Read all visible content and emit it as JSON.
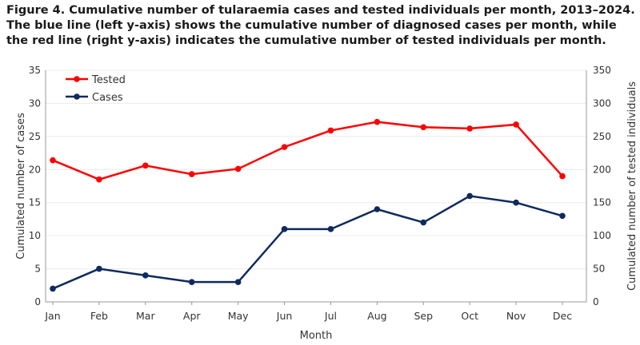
{
  "caption": "Figure 4. Cumulative number of tularaemia cases and tested individuals per month, 2013–2024. The blue line (left y-axis) shows the cumulative number of diagnosed cases per month, while the red line (right y-axis) indicates the cumulative number of tested individuals per month.",
  "chart_data": {
    "type": "line",
    "categories": [
      "Jan",
      "Feb",
      "Mar",
      "Apr",
      "May",
      "Jun",
      "Jul",
      "Aug",
      "Sep",
      "Oct",
      "Nov",
      "Dec"
    ],
    "xlabel": "Month",
    "ylabel": "Cumulated number of cases",
    "y2label": "Cumulated number of tested individuals",
    "ylim": [
      0,
      35
    ],
    "y2lim": [
      0,
      350
    ],
    "yticks": [
      0,
      5,
      10,
      15,
      20,
      25,
      30,
      35
    ],
    "y2ticks": [
      0,
      50,
      100,
      150,
      200,
      250,
      300,
      350
    ],
    "grid": true,
    "legend": "top-left",
    "series": [
      {
        "name": "Tested",
        "axis": "right",
        "color": "#ff0000",
        "values": [
          214,
          185,
          206,
          193,
          201,
          234,
          259,
          272,
          264,
          262,
          268,
          190
        ]
      },
      {
        "name": "Cases",
        "axis": "left",
        "color": "#0e2a5e",
        "values": [
          2,
          5,
          4,
          3,
          3,
          11,
          11,
          14,
          12,
          16,
          15,
          13
        ]
      }
    ]
  }
}
